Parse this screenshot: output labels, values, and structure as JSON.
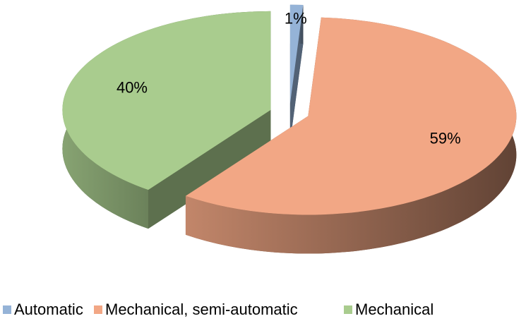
{
  "chart_data": {
    "type": "pie3d",
    "categories": [
      "Automatic",
      "Mechanical, semi-automatic",
      "Mechanical"
    ],
    "values": [
      1,
      59,
      40
    ],
    "value_labels": [
      "1%",
      "59%",
      "40%"
    ],
    "colors": [
      "#95b3d7",
      "#f2a785",
      "#a9cc8e"
    ],
    "legend": "bottom"
  }
}
